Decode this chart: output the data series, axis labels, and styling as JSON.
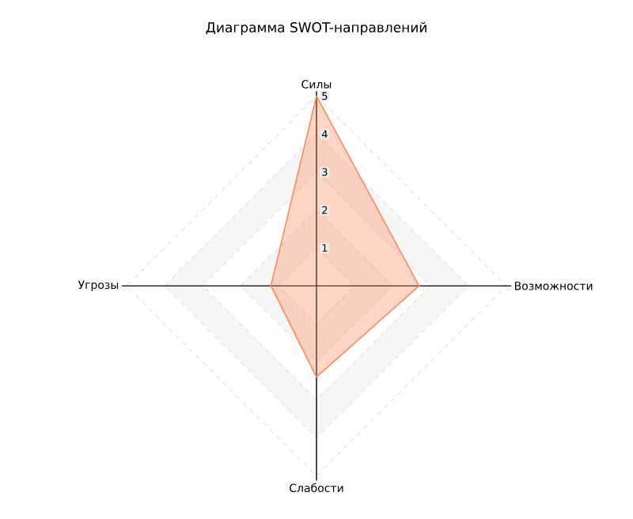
{
  "chart_data": {
    "type": "radar",
    "title": "Диаграмма SWOT-направлений",
    "categories": [
      "Силы",
      "Возможности",
      "Слабости",
      "Угрозы"
    ],
    "series": [
      {
        "color": "#ff8a5c",
        "values": [
          5,
          2.7,
          2.4,
          1.2
        ]
      }
    ],
    "ylim": [
      0,
      5
    ],
    "yticks": [
      1,
      2,
      3,
      4,
      5
    ],
    "grid": true
  }
}
